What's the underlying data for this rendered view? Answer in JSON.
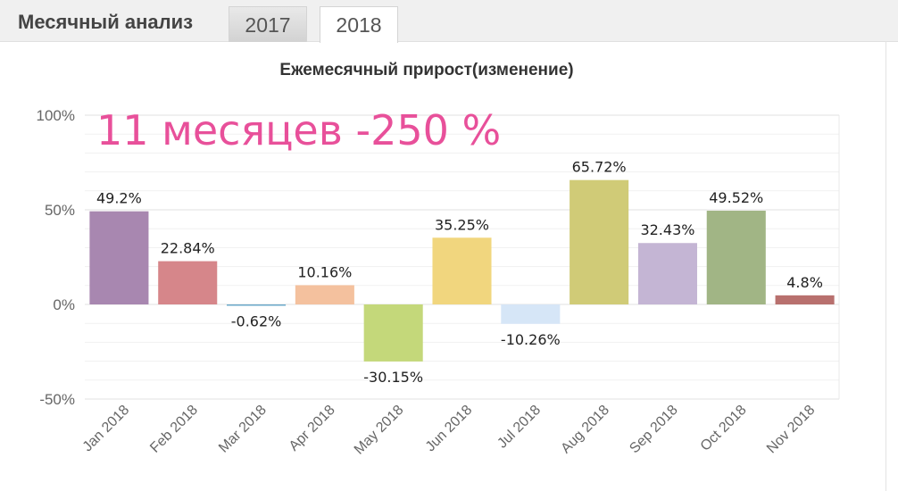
{
  "header": {
    "title": "Месячный анализ",
    "tabs": [
      {
        "label": "2017",
        "active": false
      },
      {
        "label": "2018",
        "active": true
      }
    ]
  },
  "colors": {
    "annotation": "#e8509a",
    "bars": [
      "#a887b0",
      "#d6868a",
      "#6aa8c8",
      "#f4c19e",
      "#c4d87a",
      "#f1d67e",
      "#d6e6f7",
      "#d0cb77",
      "#c4b5d4",
      "#a1b585",
      "#b8706e"
    ]
  },
  "chart_data": {
    "type": "bar",
    "title": "Ежемесячный прирост(изменение)",
    "annotation": "11 месяцев -250 %",
    "categories": [
      "Jan 2018",
      "Feb 2018",
      "Mar 2018",
      "Apr 2018",
      "May 2018",
      "Jun 2018",
      "Jul 2018",
      "Aug 2018",
      "Sep 2018",
      "Oct 2018",
      "Nov 2018"
    ],
    "values": [
      49.2,
      22.84,
      -0.62,
      10.16,
      -30.15,
      35.25,
      -10.26,
      65.72,
      32.43,
      49.52,
      4.8
    ],
    "value_labels": [
      "49.2%",
      "22.84%",
      "-0.62%",
      "10.16%",
      "-30.15%",
      "35.25%",
      "-10.26%",
      "65.72%",
      "32.43%",
      "49.52%",
      "4.8%"
    ],
    "yticks": [
      "100%",
      "50%",
      "0%",
      "-50%"
    ],
    "ytick_values": [
      100,
      50,
      0,
      -50
    ],
    "ylim": [
      -50,
      100
    ],
    "grid": true,
    "legend": false
  }
}
